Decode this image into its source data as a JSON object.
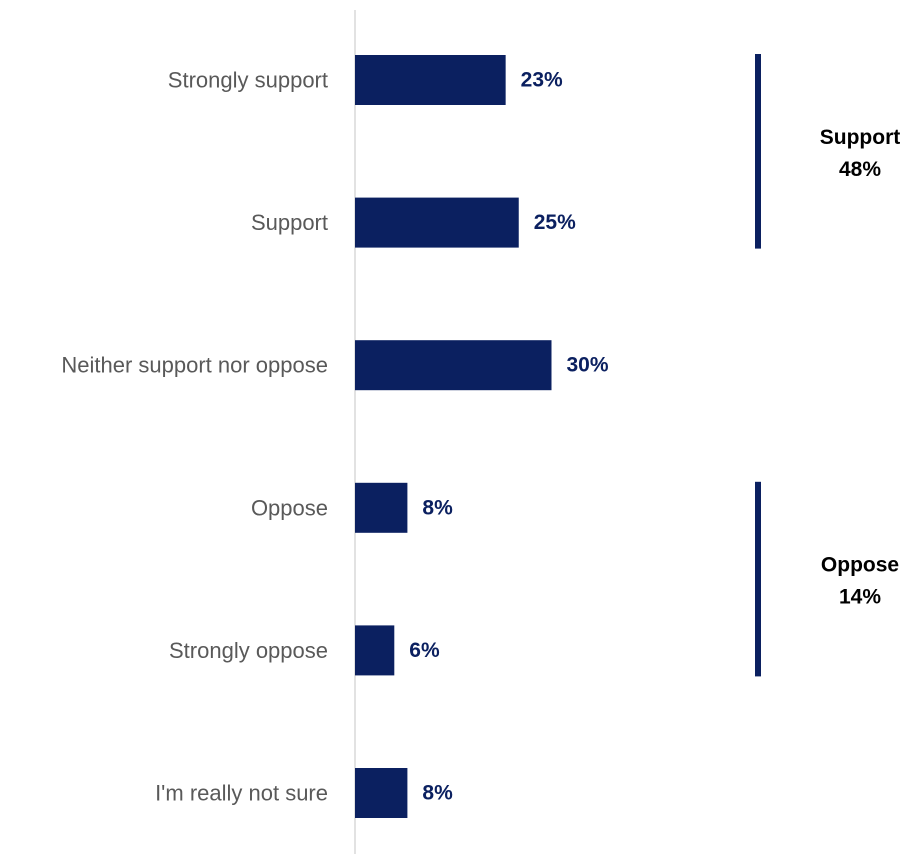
{
  "chart_data": {
    "type": "bar",
    "orientation": "horizontal",
    "categories": [
      "Strongly support",
      "Support",
      "Neither support nor oppose",
      "Oppose",
      "Strongly oppose",
      "I'm really not sure"
    ],
    "values": [
      23,
      25,
      30,
      8,
      6,
      8
    ],
    "value_labels": [
      "23%",
      "25%",
      "30%",
      "8%",
      "6%",
      "8%"
    ],
    "xlim": [
      0,
      100
    ],
    "grid": false,
    "bar_color": "#0b2060",
    "axis_color": "#d9d9d9",
    "groups": [
      {
        "name": "Support",
        "value_label": "48%",
        "from": 0,
        "to": 1
      },
      {
        "name": "Oppose",
        "value_label": "14%",
        "from": 3,
        "to": 4
      }
    ]
  }
}
